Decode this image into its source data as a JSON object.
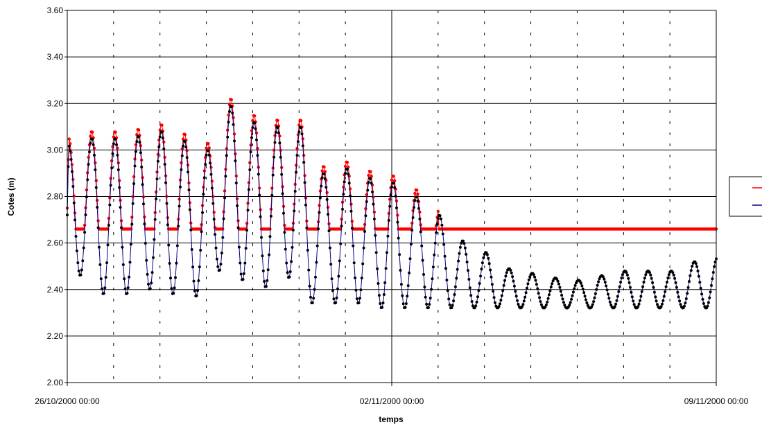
{
  "chart_data": {
    "type": "line",
    "title": "",
    "xlabel": "temps",
    "ylabel": "Cotes (m)",
    "xlim": [
      "26/10/2000 00:00",
      "09/11/2000 00:00"
    ],
    "x_tick_labels": [
      "26/10/2000 00:00",
      "02/11/2000 00:00",
      "09/11/2000 00:00"
    ],
    "ylim": [
      2.0,
      3.6
    ],
    "y_tick_labels": [
      "2.00",
      "2.20",
      "2.40",
      "2.60",
      "2.80",
      "3.00",
      "3.20",
      "3.40",
      "3.60"
    ],
    "grid": true,
    "legend_position": "right",
    "series": [
      {
        "color": "#ff0000",
        "marker_color": "#ff0000",
        "threshold": 2.66,
        "note_points": "series 1 follows series 2 peaks but is clipped at 2.66 m; constant 2.66 m from 03/11/2000",
        "start_day": 0,
        "end_day": 14
      },
      {
        "color": "#00008b",
        "marker_color": "#000000",
        "cycle_days": 0.5,
        "peaks": [
          3.02,
          3.05,
          3.05,
          3.06,
          3.08,
          3.04,
          3.0,
          3.19,
          3.12,
          3.1,
          3.1,
          2.9,
          2.92,
          2.88,
          2.86,
          2.8,
          2.72,
          2.61,
          2.56,
          2.49,
          2.47,
          2.45,
          2.44,
          2.46,
          2.48,
          2.48,
          2.48,
          2.52,
          2.54
        ],
        "troughs": [
          2.46,
          2.38,
          2.38,
          2.4,
          2.38,
          2.37,
          2.48,
          2.44,
          2.41,
          2.45,
          2.34,
          2.34,
          2.34,
          2.32,
          2.32,
          2.32,
          2.32,
          2.32,
          2.32,
          2.32,
          2.32,
          2.32,
          2.32,
          2.32,
          2.32,
          2.32,
          2.32,
          2.32
        ],
        "start_day": 0,
        "end_day": 14
      }
    ]
  }
}
